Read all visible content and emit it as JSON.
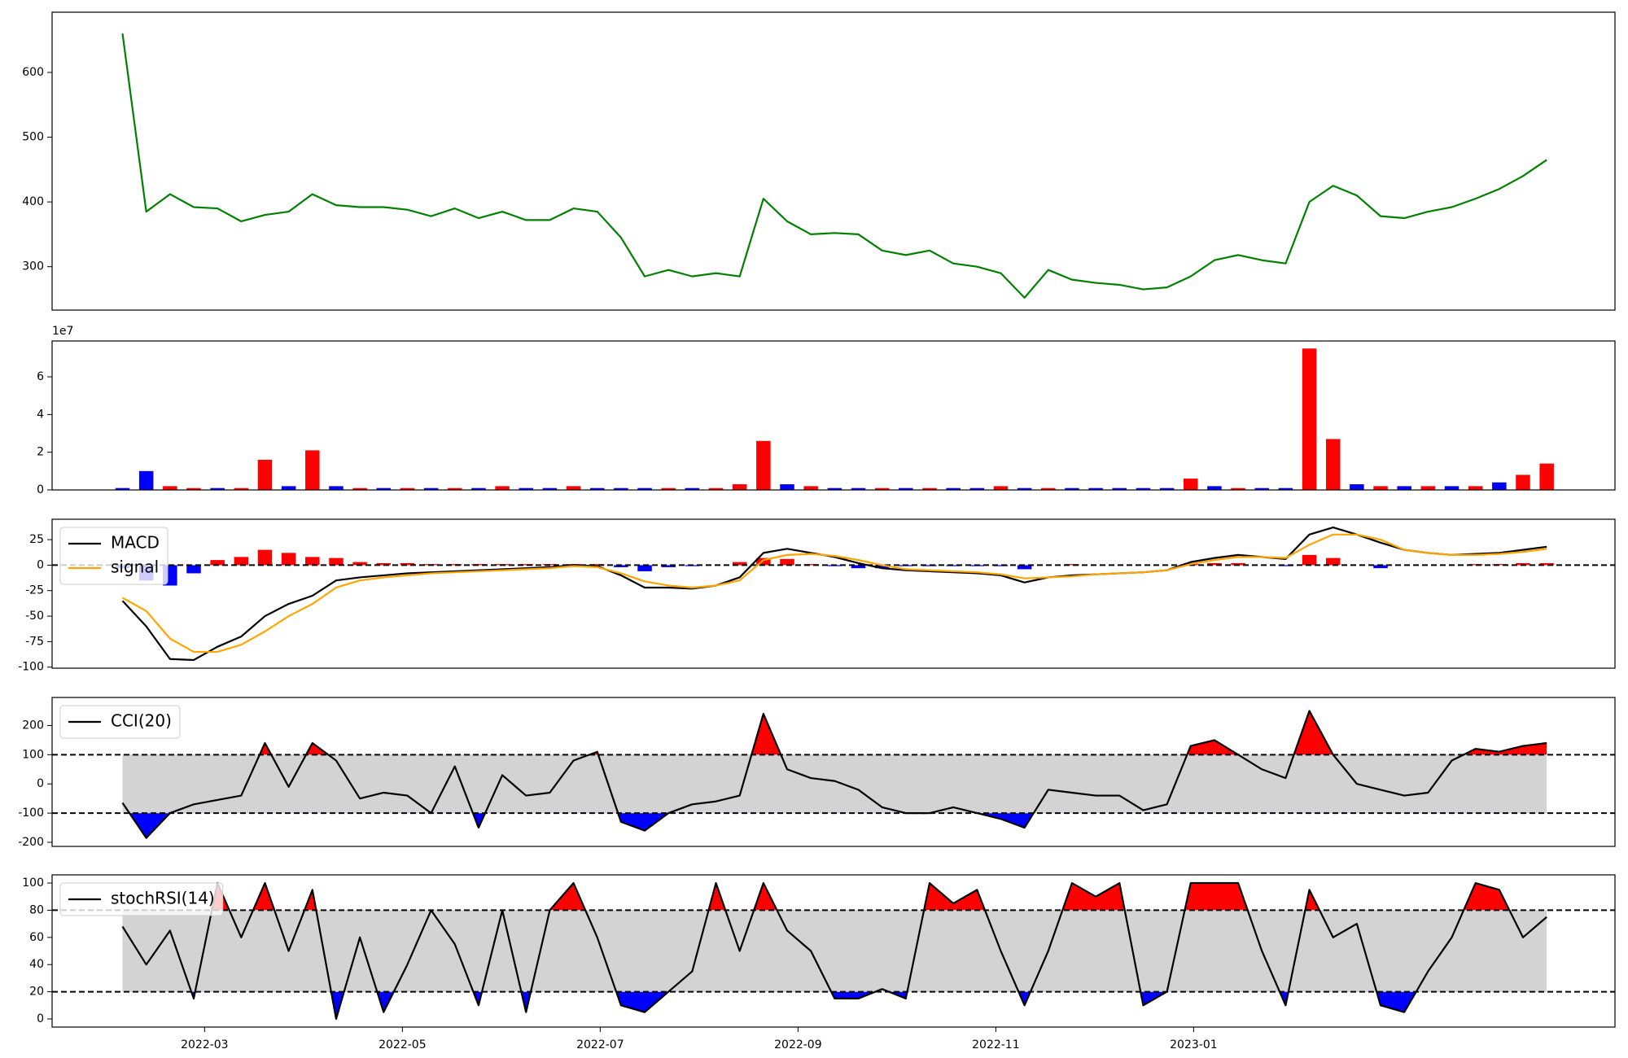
{
  "chart_data": [
    {
      "type": "line",
      "x": [
        1.17,
        1.41,
        1.65,
        1.89,
        2.13,
        2.37,
        2.61,
        2.85,
        3.09,
        3.33,
        3.57,
        3.81,
        4.05,
        4.29,
        4.53,
        4.77,
        5.01,
        5.25,
        5.49,
        5.73,
        5.97,
        6.21,
        6.45,
        6.69,
        6.93,
        7.17,
        7.41,
        7.65,
        7.89,
        8.13,
        8.37,
        8.61,
        8.85,
        9.09,
        9.33,
        9.57,
        9.81,
        10.05,
        10.29,
        10.53,
        10.77,
        11.01,
        11.25,
        11.49,
        11.73,
        11.97,
        12.21,
        12.45,
        12.69,
        12.93,
        13.17,
        13.41,
        13.65,
        13.89,
        14.13,
        14.37,
        14.61,
        14.85,
        15.09,
        15.33,
        15.57
      ],
      "xlim": [
        0.458,
        16.26
      ],
      "series": [
        {
          "color": "#008000",
          "values": [
            660,
            385,
            412,
            392,
            390,
            370,
            380,
            385,
            412,
            395,
            392,
            392,
            388,
            378,
            390,
            375,
            385,
            372,
            372,
            390,
            385,
            345,
            285,
            295,
            285,
            290,
            285,
            405,
            370,
            350,
            352,
            350,
            325,
            318,
            325,
            305,
            300,
            290,
            252,
            295,
            280,
            275,
            272,
            265,
            268,
            285,
            310,
            318,
            310,
            305,
            400,
            425,
            410,
            378,
            375,
            385,
            392,
            405,
            420,
            440,
            465
          ]
        }
      ],
      "ylim": [
        233,
        693
      ],
      "yticks": [
        300,
        400,
        500,
        600
      ]
    },
    {
      "type": "bar",
      "x": [
        1.17,
        1.41,
        1.65,
        1.89,
        2.13,
        2.37,
        2.61,
        2.85,
        3.09,
        3.33,
        3.57,
        3.81,
        4.05,
        4.29,
        4.53,
        4.77,
        5.01,
        5.25,
        5.49,
        5.73,
        5.97,
        6.21,
        6.45,
        6.69,
        6.93,
        7.17,
        7.41,
        7.65,
        7.89,
        8.13,
        8.37,
        8.61,
        8.85,
        9.09,
        9.33,
        9.57,
        9.81,
        10.05,
        10.29,
        10.53,
        10.77,
        11.01,
        11.25,
        11.49,
        11.73,
        11.97,
        12.21,
        12.45,
        12.69,
        12.93,
        13.17,
        13.41,
        13.65,
        13.89,
        14.13,
        14.37,
        14.61,
        14.85,
        15.09,
        15.33,
        15.57
      ],
      "xlim": [
        0.458,
        16.26
      ],
      "values": [
        0.1,
        1.0,
        0.2,
        0.1,
        0.1,
        0.1,
        1.6,
        0.2,
        2.1,
        0.2,
        0.1,
        0.1,
        0.1,
        0.1,
        0.1,
        0.1,
        0.2,
        0.1,
        0.1,
        0.2,
        0.1,
        0.1,
        0.1,
        0.1,
        0.1,
        0.1,
        0.3,
        2.6,
        0.3,
        0.2,
        0.1,
        0.1,
        0.1,
        0.1,
        0.1,
        0.1,
        0.1,
        0.2,
        0.1,
        0.1,
        0.1,
        0.1,
        0.1,
        0.1,
        0.1,
        0.6,
        0.2,
        0.1,
        0.1,
        0.1,
        7.5,
        2.7,
        0.3,
        0.2,
        0.2,
        0.2,
        0.2,
        0.2,
        0.4,
        0.8,
        1.4
      ],
      "colors": [
        "#0000ff",
        "#0000ff",
        "#ff0000",
        "#ff0000",
        "#0000ff",
        "#ff0000",
        "#ff0000",
        "#0000ff",
        "#ff0000",
        "#0000ff",
        "#ff0000",
        "#0000ff",
        "#ff0000",
        "#0000ff",
        "#ff0000",
        "#0000ff",
        "#ff0000",
        "#0000ff",
        "#0000ff",
        "#ff0000",
        "#0000ff",
        "#0000ff",
        "#0000ff",
        "#ff0000",
        "#0000ff",
        "#ff0000",
        "#ff0000",
        "#ff0000",
        "#0000ff",
        "#ff0000",
        "#0000ff",
        "#0000ff",
        "#ff0000",
        "#0000ff",
        "#ff0000",
        "#0000ff",
        "#0000ff",
        "#ff0000",
        "#0000ff",
        "#ff0000",
        "#0000ff",
        "#0000ff",
        "#0000ff",
        "#0000ff",
        "#0000ff",
        "#ff0000",
        "#0000ff",
        "#ff0000",
        "#0000ff",
        "#0000ff",
        "#ff0000",
        "#ff0000",
        "#0000ff",
        "#ff0000",
        "#0000ff",
        "#ff0000",
        "#0000ff",
        "#ff0000",
        "#0000ff",
        "#ff0000",
        "#ff0000"
      ],
      "offset_label": "1e7",
      "ylim": [
        0,
        7.9
      ],
      "yticks": [
        0,
        2,
        4,
        6
      ]
    },
    {
      "type": "line",
      "x": [
        1.17,
        1.41,
        1.65,
        1.89,
        2.13,
        2.37,
        2.61,
        2.85,
        3.09,
        3.33,
        3.57,
        3.81,
        4.05,
        4.29,
        4.53,
        4.77,
        5.01,
        5.25,
        5.49,
        5.73,
        5.97,
        6.21,
        6.45,
        6.69,
        6.93,
        7.17,
        7.41,
        7.65,
        7.89,
        8.13,
        8.37,
        8.61,
        8.85,
        9.09,
        9.33,
        9.57,
        9.81,
        10.05,
        10.29,
        10.53,
        10.77,
        11.01,
        11.25,
        11.49,
        11.73,
        11.97,
        12.21,
        12.45,
        12.69,
        12.93,
        13.17,
        13.41,
        13.65,
        13.89,
        14.13,
        14.37,
        14.61,
        14.85,
        15.09,
        15.33,
        15.57
      ],
      "xlim": [
        0.458,
        16.26
      ],
      "bars": {
        "values": [
          -3,
          -15,
          -20,
          -8,
          5,
          8,
          15,
          12,
          8,
          7,
          3,
          2,
          2,
          1,
          1,
          1,
          1,
          1,
          1,
          1,
          1,
          -2,
          -6,
          -2,
          -1,
          0,
          3,
          7,
          6,
          1,
          -1,
          -3,
          -3,
          -1,
          -1,
          -1,
          -1,
          -1,
          -4,
          0,
          1,
          0,
          0,
          0,
          0,
          2,
          2,
          2,
          0,
          -1,
          10,
          7,
          0,
          -3,
          0,
          0,
          0,
          1,
          1,
          2,
          2
        ],
        "up_color": "#ff0000",
        "down_color": "#0000ff"
      },
      "series": [
        {
          "name": "MACD",
          "color": "#000000",
          "values": [
            -35,
            -60,
            -92,
            -93,
            -80,
            -70,
            -50,
            -38,
            -30,
            -15,
            -12,
            -10,
            -8,
            -7,
            -6,
            -5,
            -4,
            -3,
            -2,
            0,
            -1,
            -10,
            -22,
            -22,
            -23,
            -20,
            -12,
            12,
            16,
            12,
            8,
            2,
            -3,
            -5,
            -6,
            -7,
            -8,
            -10,
            -17,
            -12,
            -10,
            -9,
            -8,
            -7,
            -5,
            3,
            7,
            10,
            8,
            6,
            30,
            37,
            30,
            22,
            15,
            12,
            10,
            11,
            12,
            15,
            18
          ]
        },
        {
          "name": "signal",
          "color": "#ffa500",
          "values": [
            -32,
            -45,
            -72,
            -85,
            -85,
            -78,
            -65,
            -50,
            -38,
            -22,
            -15,
            -12,
            -10,
            -8,
            -7,
            -6,
            -5,
            -4,
            -3,
            -1,
            -2,
            -8,
            -16,
            -20,
            -22,
            -20,
            -15,
            5,
            10,
            11,
            9,
            5,
            0,
            -4,
            -5,
            -6,
            -7,
            -9,
            -13,
            -12,
            -11,
            -9,
            -8,
            -7,
            -5,
            1,
            5,
            8,
            8,
            7,
            20,
            30,
            30,
            25,
            15,
            12,
            10,
            10,
            11,
            13,
            16
          ]
        }
      ],
      "hlines": [
        0
      ],
      "legend": "upper left",
      "ylim": [
        -101,
        45
      ],
      "yticks": [
        -100,
        -75,
        -50,
        -25,
        0,
        25
      ]
    },
    {
      "type": "line",
      "x": [
        1.17,
        1.41,
        1.65,
        1.89,
        2.13,
        2.37,
        2.61,
        2.85,
        3.09,
        3.33,
        3.57,
        3.81,
        4.05,
        4.29,
        4.53,
        4.77,
        5.01,
        5.25,
        5.49,
        5.73,
        5.97,
        6.21,
        6.45,
        6.69,
        6.93,
        7.17,
        7.41,
        7.65,
        7.89,
        8.13,
        8.37,
        8.61,
        8.85,
        9.09,
        9.33,
        9.57,
        9.81,
        10.05,
        10.29,
        10.53,
        10.77,
        11.01,
        11.25,
        11.49,
        11.73,
        11.97,
        12.21,
        12.45,
        12.69,
        12.93,
        13.17,
        13.41,
        13.65,
        13.89,
        14.13,
        14.37,
        14.61,
        14.85,
        15.09,
        15.33,
        15.57
      ],
      "xlim": [
        0.458,
        16.26
      ],
      "series": [
        {
          "name": "CCI(20)",
          "color": "#000000",
          "values": [
            -65,
            -185,
            -100,
            -70,
            -55,
            -40,
            140,
            -10,
            140,
            80,
            -50,
            -30,
            -40,
            -100,
            60,
            -150,
            30,
            -40,
            -30,
            80,
            110,
            -130,
            -160,
            -100,
            -70,
            -60,
            -40,
            240,
            50,
            20,
            10,
            -20,
            -80,
            -100,
            -100,
            -80,
            -100,
            -120,
            -150,
            -20,
            -30,
            -40,
            -40,
            -90,
            -70,
            130,
            150,
            100,
            50,
            20,
            250,
            100,
            0,
            -20,
            -40,
            -30,
            80,
            120,
            110,
            130,
            140
          ]
        }
      ],
      "band": [
        -100,
        100
      ],
      "band_color": "#d3d3d3",
      "above_color": "#ff0000",
      "below_color": "#0000ff",
      "hlines": [
        -100,
        100
      ],
      "legend": "upper left",
      "ylim": [
        -214,
        296
      ],
      "yticks": [
        -200,
        -100,
        0,
        100,
        200
      ]
    },
    {
      "type": "line",
      "x": [
        1.17,
        1.41,
        1.65,
        1.89,
        2.13,
        2.37,
        2.61,
        2.85,
        3.09,
        3.33,
        3.57,
        3.81,
        4.05,
        4.29,
        4.53,
        4.77,
        5.01,
        5.25,
        5.49,
        5.73,
        5.97,
        6.21,
        6.45,
        6.69,
        6.93,
        7.17,
        7.41,
        7.65,
        7.89,
        8.13,
        8.37,
        8.61,
        8.85,
        9.09,
        9.33,
        9.57,
        9.81,
        10.05,
        10.29,
        10.53,
        10.77,
        11.01,
        11.25,
        11.49,
        11.73,
        11.97,
        12.21,
        12.45,
        12.69,
        12.93,
        13.17,
        13.41,
        13.65,
        13.89,
        14.13,
        14.37,
        14.61,
        14.85,
        15.09,
        15.33,
        15.57
      ],
      "xlim": [
        0.458,
        16.26
      ],
      "xticks": [
        {
          "value": 2,
          "label": "2022-03"
        },
        {
          "value": 4,
          "label": "2022-05"
        },
        {
          "value": 6,
          "label": "2022-07"
        },
        {
          "value": 8,
          "label": "2022-09"
        },
        {
          "value": 10,
          "label": "2022-11"
        },
        {
          "value": 12,
          "label": "2023-01"
        }
      ],
      "series": [
        {
          "name": "stochRSI(14)",
          "color": "#000000",
          "values": [
            68,
            40,
            65,
            15,
            100,
            60,
            100,
            50,
            95,
            0,
            60,
            5,
            40,
            80,
            55,
            10,
            80,
            5,
            80,
            100,
            60,
            10,
            5,
            20,
            35,
            100,
            50,
            100,
            65,
            50,
            15,
            15,
            22,
            15,
            100,
            85,
            95,
            50,
            10,
            50,
            100,
            90,
            100,
            10,
            20,
            100,
            100,
            100,
            50,
            10,
            95,
            60,
            70,
            10,
            5,
            35,
            60,
            100,
            95,
            60,
            75
          ]
        }
      ],
      "band": [
        20,
        80
      ],
      "band_color": "#d3d3d3",
      "above_color": "#ff0000",
      "below_color": "#0000ff",
      "hlines": [
        20,
        80
      ],
      "legend": "upper left",
      "ylim": [
        -6,
        106
      ],
      "yticks": [
        0,
        20,
        40,
        60,
        80,
        100
      ]
    }
  ]
}
